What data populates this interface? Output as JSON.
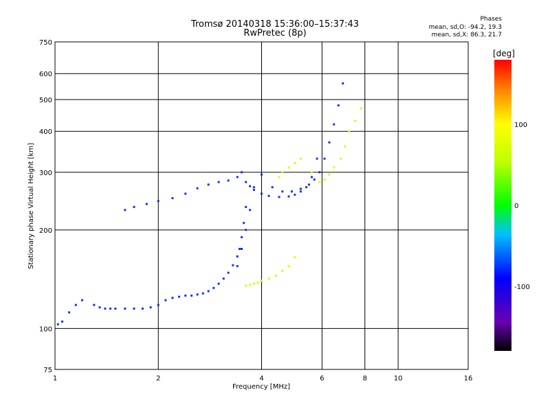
{
  "header": {
    "title_line1": "Tromsø 20140318 15:36:00–15:37:43",
    "title_line2": "RwPretec (8p)"
  },
  "phase_stats": {
    "heading": "Phases",
    "line_o": "mean, sd,O: -94.2, 19.3",
    "line_x": "mean, sd,X: 86.3, 21.7"
  },
  "chart_data": {
    "type": "scatter",
    "title": "Tromsø 20140318 15:36:00–15:37:43",
    "xlabel": "Frequency [MHz]",
    "ylabel": "Stationary phase Virtual Height [km]",
    "x_scale": "log",
    "y_scale": "log",
    "xlim": [
      1,
      16
    ],
    "ylim": [
      75,
      750
    ],
    "x_ticks": [
      1,
      2,
      4,
      6,
      8,
      10,
      16
    ],
    "x_tick_labels": [
      "1",
      "2",
      "4",
      "6",
      "8",
      "10",
      "16"
    ],
    "y_ticks": [
      75,
      100,
      200,
      300,
      400,
      500,
      600,
      750
    ],
    "y_tick_labels": [
      "75",
      "100",
      "200",
      "300",
      "400",
      "500",
      "600",
      "750"
    ],
    "grid": true,
    "colorbar": {
      "label": "[deg]",
      "range": [
        -180,
        180
      ],
      "ticks": [
        -100,
        0,
        100
      ],
      "tick_labels": [
        "-100",
        "0",
        "100"
      ]
    },
    "series": [
      {
        "mode": "O",
        "color_value_deg": -94,
        "x": [
          1.02,
          1.05,
          1.1,
          1.15,
          1.2,
          1.3,
          1.35,
          1.4,
          1.45,
          1.5,
          1.6,
          1.7,
          1.8,
          1.9,
          2.0,
          2.1,
          2.2,
          2.3,
          2.4,
          2.5,
          2.6,
          2.7,
          2.8,
          2.9,
          3.0,
          3.1,
          3.2,
          3.3,
          3.4,
          3.45,
          3.5,
          3.55,
          3.6,
          1.6,
          1.7,
          1.85,
          2.0,
          2.2,
          2.4,
          2.6,
          2.8,
          3.0,
          3.2,
          3.4,
          3.5,
          3.6,
          3.7,
          3.8,
          4.0,
          4.2,
          4.5,
          4.8,
          5.0,
          5.2,
          5.4,
          5.6,
          5.8,
          3.4,
          3.5,
          3.6,
          3.7,
          3.8,
          4.0,
          4.3,
          4.6,
          4.9,
          5.2,
          5.5,
          5.7,
          5.9,
          6.1,
          6.3,
          6.5,
          6.7,
          6.9
        ],
        "y": [
          103,
          105,
          112,
          118,
          122,
          118,
          116,
          115,
          115,
          115,
          115,
          115,
          115,
          116,
          118,
          122,
          124,
          125,
          126,
          126,
          127,
          128,
          130,
          133,
          137,
          142,
          148,
          156,
          166,
          175,
          190,
          210,
          235,
          230,
          235,
          240,
          245,
          250,
          258,
          268,
          275,
          280,
          283,
          290,
          300,
          280,
          272,
          265,
          258,
          254,
          252,
          253,
          256,
          262,
          270,
          290,
          330,
          155,
          175,
          200,
          230,
          270,
          295,
          270,
          262,
          262,
          267,
          275,
          285,
          300,
          330,
          370,
          420,
          480,
          560
        ]
      },
      {
        "mode": "X",
        "color_value_deg": 86,
        "x": [
          3.6,
          3.7,
          3.8,
          3.9,
          4.0,
          4.2,
          4.4,
          4.6,
          4.8,
          5.0,
          4.5,
          4.6,
          4.8,
          5.0,
          5.2,
          5.6,
          5.9,
          6.1,
          6.3,
          6.5,
          6.8,
          7.0,
          7.2,
          7.5,
          7.8
        ],
        "y": [
          135,
          136,
          137,
          138,
          140,
          142,
          145,
          150,
          155,
          165,
          290,
          300,
          310,
          320,
          330,
          300,
          280,
          285,
          295,
          310,
          330,
          360,
          400,
          430,
          470
        ]
      }
    ]
  }
}
